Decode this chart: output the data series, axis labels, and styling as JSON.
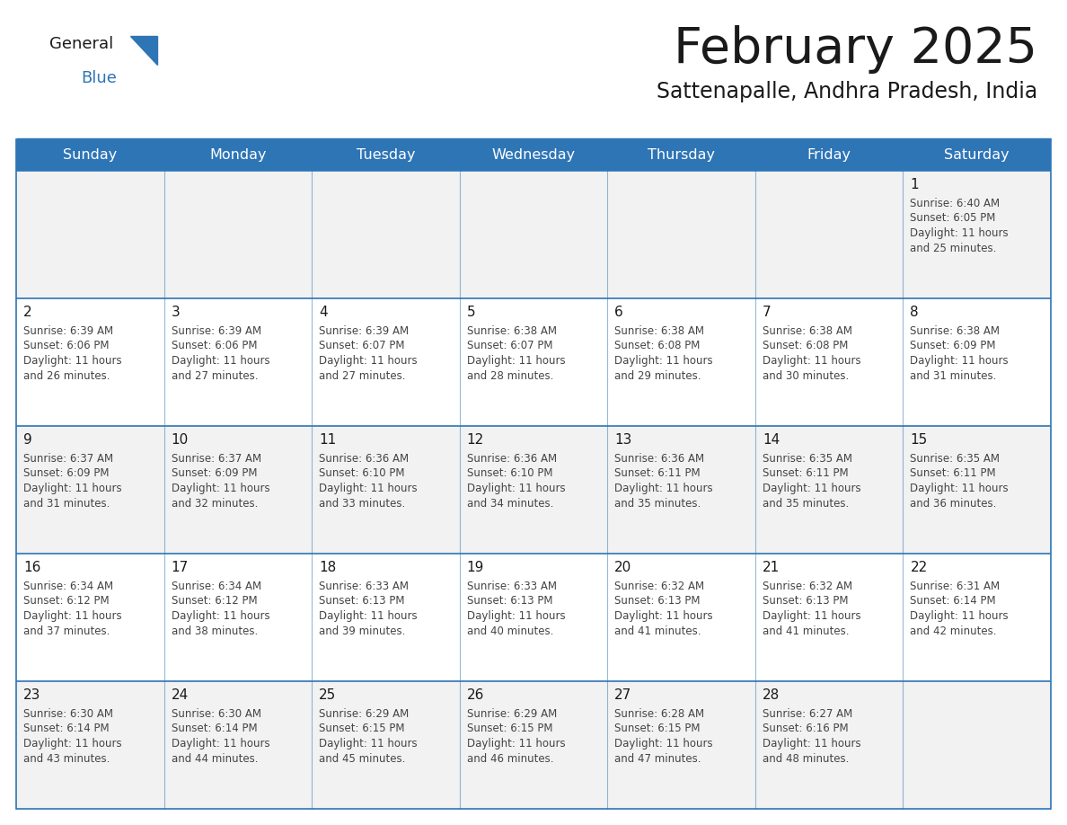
{
  "title": "February 2025",
  "subtitle": "Sattenapalle, Andhra Pradesh, India",
  "days_of_week": [
    "Sunday",
    "Monday",
    "Tuesday",
    "Wednesday",
    "Thursday",
    "Friday",
    "Saturday"
  ],
  "header_bg": "#2E75B6",
  "header_text": "#FFFFFF",
  "cell_bg_odd": "#F2F2F2",
  "cell_bg_even": "#FFFFFF",
  "border_color": "#2E75B6",
  "title_color": "#1A1A1A",
  "subtitle_color": "#1A1A1A",
  "day_number_color": "#1A1A1A",
  "cell_text_color": "#444444",
  "logo_general_color": "#1A1A1A",
  "logo_blue_color": "#2E75B6",
  "calendar_data": [
    [
      null,
      null,
      null,
      null,
      null,
      null,
      {
        "day": 1,
        "sunrise": "6:40 AM",
        "sunset": "6:05 PM",
        "daylight": "11 hours and 25 minutes."
      }
    ],
    [
      {
        "day": 2,
        "sunrise": "6:39 AM",
        "sunset": "6:06 PM",
        "daylight": "11 hours and 26 minutes."
      },
      {
        "day": 3,
        "sunrise": "6:39 AM",
        "sunset": "6:06 PM",
        "daylight": "11 hours and 27 minutes."
      },
      {
        "day": 4,
        "sunrise": "6:39 AM",
        "sunset": "6:07 PM",
        "daylight": "11 hours and 27 minutes."
      },
      {
        "day": 5,
        "sunrise": "6:38 AM",
        "sunset": "6:07 PM",
        "daylight": "11 hours and 28 minutes."
      },
      {
        "day": 6,
        "sunrise": "6:38 AM",
        "sunset": "6:08 PM",
        "daylight": "11 hours and 29 minutes."
      },
      {
        "day": 7,
        "sunrise": "6:38 AM",
        "sunset": "6:08 PM",
        "daylight": "11 hours and 30 minutes."
      },
      {
        "day": 8,
        "sunrise": "6:38 AM",
        "sunset": "6:09 PM",
        "daylight": "11 hours and 31 minutes."
      }
    ],
    [
      {
        "day": 9,
        "sunrise": "6:37 AM",
        "sunset": "6:09 PM",
        "daylight": "11 hours and 31 minutes."
      },
      {
        "day": 10,
        "sunrise": "6:37 AM",
        "sunset": "6:09 PM",
        "daylight": "11 hours and 32 minutes."
      },
      {
        "day": 11,
        "sunrise": "6:36 AM",
        "sunset": "6:10 PM",
        "daylight": "11 hours and 33 minutes."
      },
      {
        "day": 12,
        "sunrise": "6:36 AM",
        "sunset": "6:10 PM",
        "daylight": "11 hours and 34 minutes."
      },
      {
        "day": 13,
        "sunrise": "6:36 AM",
        "sunset": "6:11 PM",
        "daylight": "11 hours and 35 minutes."
      },
      {
        "day": 14,
        "sunrise": "6:35 AM",
        "sunset": "6:11 PM",
        "daylight": "11 hours and 35 minutes."
      },
      {
        "day": 15,
        "sunrise": "6:35 AM",
        "sunset": "6:11 PM",
        "daylight": "11 hours and 36 minutes."
      }
    ],
    [
      {
        "day": 16,
        "sunrise": "6:34 AM",
        "sunset": "6:12 PM",
        "daylight": "11 hours and 37 minutes."
      },
      {
        "day": 17,
        "sunrise": "6:34 AM",
        "sunset": "6:12 PM",
        "daylight": "11 hours and 38 minutes."
      },
      {
        "day": 18,
        "sunrise": "6:33 AM",
        "sunset": "6:13 PM",
        "daylight": "11 hours and 39 minutes."
      },
      {
        "day": 19,
        "sunrise": "6:33 AM",
        "sunset": "6:13 PM",
        "daylight": "11 hours and 40 minutes."
      },
      {
        "day": 20,
        "sunrise": "6:32 AM",
        "sunset": "6:13 PM",
        "daylight": "11 hours and 41 minutes."
      },
      {
        "day": 21,
        "sunrise": "6:32 AM",
        "sunset": "6:13 PM",
        "daylight": "11 hours and 41 minutes."
      },
      {
        "day": 22,
        "sunrise": "6:31 AM",
        "sunset": "6:14 PM",
        "daylight": "11 hours and 42 minutes."
      }
    ],
    [
      {
        "day": 23,
        "sunrise": "6:30 AM",
        "sunset": "6:14 PM",
        "daylight": "11 hours and 43 minutes."
      },
      {
        "day": 24,
        "sunrise": "6:30 AM",
        "sunset": "6:14 PM",
        "daylight": "11 hours and 44 minutes."
      },
      {
        "day": 25,
        "sunrise": "6:29 AM",
        "sunset": "6:15 PM",
        "daylight": "11 hours and 45 minutes."
      },
      {
        "day": 26,
        "sunrise": "6:29 AM",
        "sunset": "6:15 PM",
        "daylight": "11 hours and 46 minutes."
      },
      {
        "day": 27,
        "sunrise": "6:28 AM",
        "sunset": "6:15 PM",
        "daylight": "11 hours and 47 minutes."
      },
      {
        "day": 28,
        "sunrise": "6:27 AM",
        "sunset": "6:16 PM",
        "daylight": "11 hours and 48 minutes."
      },
      null
    ]
  ]
}
